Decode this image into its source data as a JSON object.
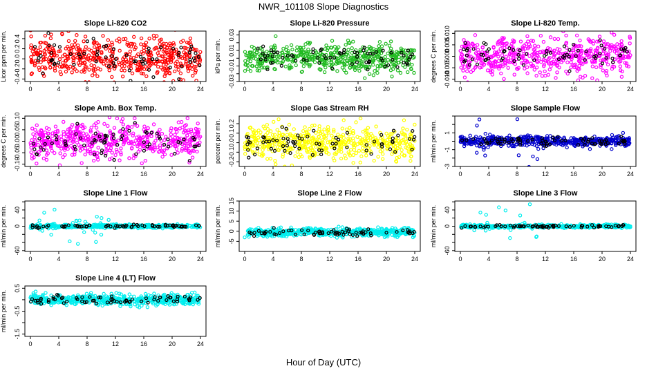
{
  "figure": {
    "title": "NWR_101108  Slope Diagnostics",
    "xlabel": "Hour of Day (UTC)"
  },
  "colors": {
    "co2": "#ff0000",
    "pressure": "#22bb22",
    "temp": "#ff00ff",
    "box": "#ff00ff",
    "rh": "#ffff00",
    "sample": "#0000cc",
    "line1": "#00eeee",
    "line2": "#00eeee",
    "line3": "#00eeee",
    "line4": "#00eeee",
    "highlight": "#000000"
  },
  "chart_data": [
    {
      "id": "co2",
      "type": "scatter",
      "title": "Slope Li-820 CO2",
      "ylabel": "Licor ppm per min.",
      "xlim": [
        0,
        24
      ],
      "ylim": [
        -0.45,
        0.55
      ],
      "yticks": [
        -0.4,
        -0.2,
        0.0,
        0.2,
        0.4
      ],
      "ytick_labels": [
        "-0.4",
        "-0.2",
        "0.0",
        "0.2",
        "0.4"
      ],
      "xticks": [
        0,
        4,
        8,
        12,
        16,
        20,
        24
      ],
      "xtick_labels": [
        "0",
        "4",
        "8",
        "12",
        "16",
        "20",
        "24"
      ],
      "color_key": "co2",
      "series_spread": 0.2,
      "series_mean": 0.02
    },
    {
      "id": "pressure",
      "type": "scatter",
      "title": "Slope Li-820 Pressure",
      "ylabel": "kPa per min.",
      "xlim": [
        0,
        24
      ],
      "ylim": [
        -0.03,
        0.035
      ],
      "yticks": [
        -0.03,
        -0.02,
        -0.01,
        0.0,
        0.01,
        0.02,
        0.03
      ],
      "ytick_labels": [
        "-0.03",
        "",
        "-0.01",
        "",
        "0.01",
        "",
        "0.03"
      ],
      "xticks": [
        0,
        4,
        8,
        12,
        16,
        20,
        24
      ],
      "xtick_labels": [
        "0",
        "4",
        "8",
        "12",
        "16",
        "20",
        "24"
      ],
      "color_key": "pressure",
      "series_spread": 0.009,
      "series_mean": 0.0
    },
    {
      "id": "temp",
      "type": "scatter",
      "title": "Slope Li-820 Temp.",
      "ylabel": "degrees C per min.",
      "xlim": [
        0,
        24
      ],
      "ylim": [
        -0.011,
        0.011
      ],
      "yticks": [
        -0.01,
        -0.005,
        0.0,
        0.005,
        0.01
      ],
      "ytick_labels": [
        "-0.010",
        "-0.005",
        "0.000",
        "0.005",
        "0.010"
      ],
      "xticks": [
        0,
        4,
        8,
        12,
        16,
        20,
        24
      ],
      "xtick_labels": [
        "0",
        "4",
        "8",
        "12",
        "16",
        "20",
        "24"
      ],
      "color_key": "temp",
      "series_spread": 0.004,
      "series_mean": 0.0
    },
    {
      "id": "box",
      "type": "scatter",
      "title": "Slope Amb. Box Temp.",
      "ylabel": "degrees C per min.",
      "xlim": [
        0,
        24
      ],
      "ylim": [
        -0.11,
        0.11
      ],
      "yticks": [
        -0.1,
        -0.05,
        0.0,
        0.05,
        0.1
      ],
      "ytick_labels": [
        "-0.10",
        "-0.05",
        "0.00",
        "0.05",
        "0.10"
      ],
      "xticks": [
        0,
        4,
        8,
        12,
        16,
        20,
        24
      ],
      "xtick_labels": [
        "0",
        "4",
        "8",
        "12",
        "16",
        "20",
        "24"
      ],
      "color_key": "box",
      "series_spread": 0.04,
      "series_mean": 0.0
    },
    {
      "id": "rh",
      "type": "scatter",
      "title": "Slope Gas Stream RH",
      "ylabel": "percent per min.",
      "xlim": [
        0,
        24
      ],
      "ylim": [
        -0.25,
        0.28
      ],
      "yticks": [
        -0.2,
        -0.1,
        0.0,
        0.1,
        0.2
      ],
      "ytick_labels": [
        "-0.2",
        "-0.1",
        "0.0",
        "0.1",
        "0.2"
      ],
      "xticks": [
        0,
        4,
        8,
        12,
        16,
        20,
        24
      ],
      "xtick_labels": [
        "0",
        "4",
        "8",
        "12",
        "16",
        "20",
        "24"
      ],
      "color_key": "rh",
      "series_spread": 0.09,
      "series_mean": 0.0
    },
    {
      "id": "sample",
      "type": "scatter",
      "title": "Slope Sample Flow",
      "ylabel": "ml/min per min.",
      "xlim": [
        0,
        24
      ],
      "ylim": [
        -3,
        3
      ],
      "yticks": [
        -3,
        -2,
        -1,
        0,
        1,
        2,
        3
      ],
      "ytick_labels": [
        "-3",
        "",
        "-1",
        "",
        "1",
        "",
        ""
      ],
      "xticks": [
        0,
        4,
        8,
        12,
        16,
        20,
        24
      ],
      "xtick_labels": [
        "0",
        "4",
        "8",
        "12",
        "16",
        "20",
        "24"
      ],
      "color_key": "sample",
      "series_spread": 0.3,
      "series_mean": 0.0,
      "outlier_range": [
        1.5,
        12
      ],
      "outlier_spread": 1.4
    },
    {
      "id": "line1",
      "type": "scatter",
      "title": "Slope Line 1 Flow",
      "ylabel": "ml/min per min.",
      "xlim": [
        0,
        24
      ],
      "ylim": [
        -62,
        62
      ],
      "yticks": [
        -60,
        -40,
        -20,
        0,
        20,
        40,
        60
      ],
      "ytick_labels": [
        "-60",
        "",
        "",
        "0",
        "",
        "40",
        ""
      ],
      "xticks": [
        0,
        4,
        8,
        12,
        16,
        20,
        24
      ],
      "xtick_labels": [
        "0",
        "4",
        "8",
        "12",
        "16",
        "20",
        "24"
      ],
      "color_key": "line1",
      "series_spread": 2,
      "series_mean": 0.0,
      "outlier_range": [
        1,
        12
      ],
      "outlier_spread": 35
    },
    {
      "id": "line2",
      "type": "scatter",
      "title": "Slope Line 2 Flow",
      "ylabel": "ml/min per min.",
      "xlim": [
        0,
        24
      ],
      "ylim": [
        -10,
        15
      ],
      "yticks": [
        -5,
        0,
        5,
        10,
        15
      ],
      "ytick_labels": [
        "-5",
        "0",
        "5",
        "10",
        "15"
      ],
      "xticks": [
        0,
        4,
        8,
        12,
        16,
        20,
        24
      ],
      "xtick_labels": [
        "0",
        "4",
        "8",
        "12",
        "16",
        "20",
        "24"
      ],
      "color_key": "line2",
      "series_spread": 1.0,
      "series_mean": -0.5
    },
    {
      "id": "line3",
      "type": "scatter",
      "title": "Slope Line 3 Flow",
      "ylabel": "ml/min per min.",
      "xlim": [
        0,
        24
      ],
      "ylim": [
        -62,
        62
      ],
      "yticks": [
        -60,
        -40,
        -20,
        0,
        20,
        40,
        60
      ],
      "ytick_labels": [
        "-60",
        "",
        "",
        "0",
        "",
        "40",
        ""
      ],
      "xticks": [
        0,
        4,
        8,
        12,
        16,
        20,
        24
      ],
      "xtick_labels": [
        "0",
        "4",
        "8",
        "12",
        "16",
        "20",
        "24"
      ],
      "color_key": "line3",
      "series_spread": 2,
      "series_mean": 0.0,
      "outlier_range": [
        1,
        12
      ],
      "outlier_spread": 35
    },
    {
      "id": "line4",
      "type": "scatter",
      "title": "Slope Line 4 (LT) Flow",
      "ylabel": "ml/min per min.",
      "xlim": [
        0,
        24
      ],
      "ylim": [
        -1.6,
        0.6
      ],
      "yticks": [
        -1.5,
        -1.0,
        -0.5,
        0.0,
        0.5
      ],
      "ytick_labels": [
        "-1.5",
        "",
        "-0.5",
        "",
        "0.5"
      ],
      "xticks": [
        0,
        4,
        8,
        12,
        16,
        20,
        24
      ],
      "xtick_labels": [
        "0",
        "4",
        "8",
        "12",
        "16",
        "20",
        "24"
      ],
      "color_key": "line4",
      "series_spread": 0.12,
      "series_mean": 0.0
    }
  ]
}
